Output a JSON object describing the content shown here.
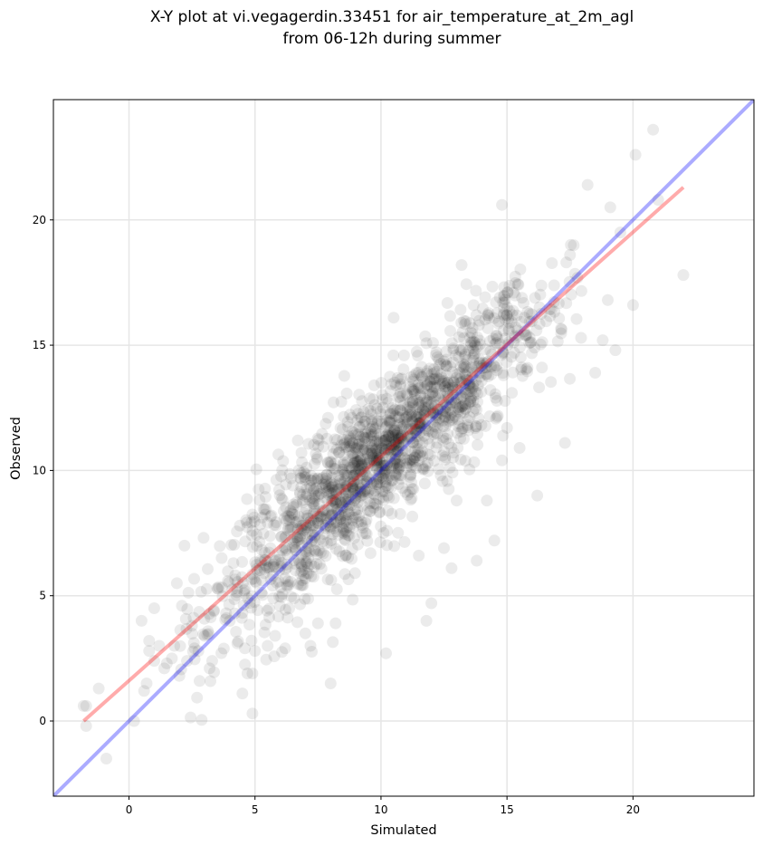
{
  "chart_data": {
    "type": "scatter",
    "title_line1": "X-Y plot at vi.vegagerdin.33451 for air_temperature_at_2m_agl",
    "title_line2": "from 06-12h during summer",
    "xlabel": "Simulated",
    "ylabel": "Observed",
    "xlim": [
      -3,
      24.8
    ],
    "ylim": [
      -3,
      24.8
    ],
    "xticks": [
      0,
      5,
      10,
      15,
      20
    ],
    "yticks": [
      0,
      5,
      10,
      15,
      20
    ],
    "grid": true,
    "point_color": "#000000",
    "point_alpha": 0.08,
    "identity_line": {
      "color": "#0000ff",
      "from": [
        -3,
        -3
      ],
      "to": [
        24.8,
        24.8
      ]
    },
    "regression_line": {
      "color": "#ff0000",
      "from": [
        -1.8,
        0.0
      ],
      "to": [
        22.0,
        21.3
      ]
    },
    "cluster": {
      "count": 1700,
      "x_range": [
        3.0,
        17.0
      ],
      "slope": 0.9,
      "intercept": 1.5,
      "spread": 1.4
    },
    "points": [
      [
        -1.8,
        0.6
      ],
      [
        -1.7,
        0.6
      ],
      [
        -1.7,
        -0.2
      ],
      [
        -1.2,
        1.3
      ],
      [
        -0.9,
        -1.5
      ],
      [
        0.2,
        0.0
      ],
      [
        0.5,
        4.0
      ],
      [
        0.6,
        1.2
      ],
      [
        0.7,
        1.5
      ],
      [
        0.8,
        2.8
      ],
      [
        0.8,
        3.2
      ],
      [
        1.0,
        4.5
      ],
      [
        1.0,
        2.4
      ],
      [
        1.2,
        3.0
      ],
      [
        1.4,
        2.1
      ],
      [
        1.5,
        2.3
      ],
      [
        1.7,
        2.5
      ],
      [
        1.8,
        3.0
      ],
      [
        1.9,
        5.5
      ],
      [
        2.0,
        1.8
      ],
      [
        2.1,
        4.6
      ],
      [
        2.2,
        7.0
      ],
      [
        2.3,
        2.4
      ],
      [
        2.5,
        3.8
      ],
      [
        2.6,
        2.9
      ],
      [
        2.8,
        1.6
      ],
      [
        3.0,
        3.4
      ],
      [
        3.2,
        2.1
      ],
      [
        3.3,
        2.4
      ],
      [
        3.5,
        5.3
      ],
      [
        4.0,
        4.0
      ],
      [
        4.3,
        3.1
      ],
      [
        4.5,
        1.1
      ],
      [
        4.6,
        2.9
      ],
      [
        4.7,
        1.9
      ],
      [
        4.9,
        1.9
      ],
      [
        4.9,
        0.3
      ],
      [
        5.0,
        2.8
      ],
      [
        5.5,
        3.0
      ],
      [
        5.8,
        3.4
      ],
      [
        6.2,
        2.9
      ],
      [
        6.5,
        9.4
      ],
      [
        7.0,
        3.5
      ],
      [
        7.2,
        3.0
      ],
      [
        7.5,
        3.9
      ],
      [
        8.0,
        1.5
      ],
      [
        8.2,
        3.9
      ],
      [
        10.2,
        2.7
      ],
      [
        10.5,
        16.1
      ],
      [
        11.5,
        6.6
      ],
      [
        11.8,
        4.0
      ],
      [
        12.0,
        4.7
      ],
      [
        12.5,
        6.9
      ],
      [
        12.8,
        6.1
      ],
      [
        13.0,
        8.8
      ],
      [
        13.2,
        18.2
      ],
      [
        13.8,
        6.4
      ],
      [
        14.2,
        8.8
      ],
      [
        14.5,
        7.2
      ],
      [
        14.8,
        10.4
      ],
      [
        14.8,
        20.6
      ],
      [
        15.0,
        11.7
      ],
      [
        15.5,
        10.9
      ],
      [
        16.2,
        9.0
      ],
      [
        17.3,
        11.1
      ],
      [
        17.5,
        18.6
      ],
      [
        18.2,
        21.4
      ],
      [
        18.5,
        13.9
      ],
      [
        18.8,
        15.2
      ],
      [
        19.0,
        16.8
      ],
      [
        19.1,
        20.5
      ],
      [
        19.3,
        14.8
      ],
      [
        19.5,
        19.5
      ],
      [
        20.0,
        16.6
      ],
      [
        20.1,
        22.6
      ],
      [
        20.8,
        23.6
      ],
      [
        21.0,
        20.8
      ],
      [
        22.0,
        17.8
      ]
    ]
  }
}
